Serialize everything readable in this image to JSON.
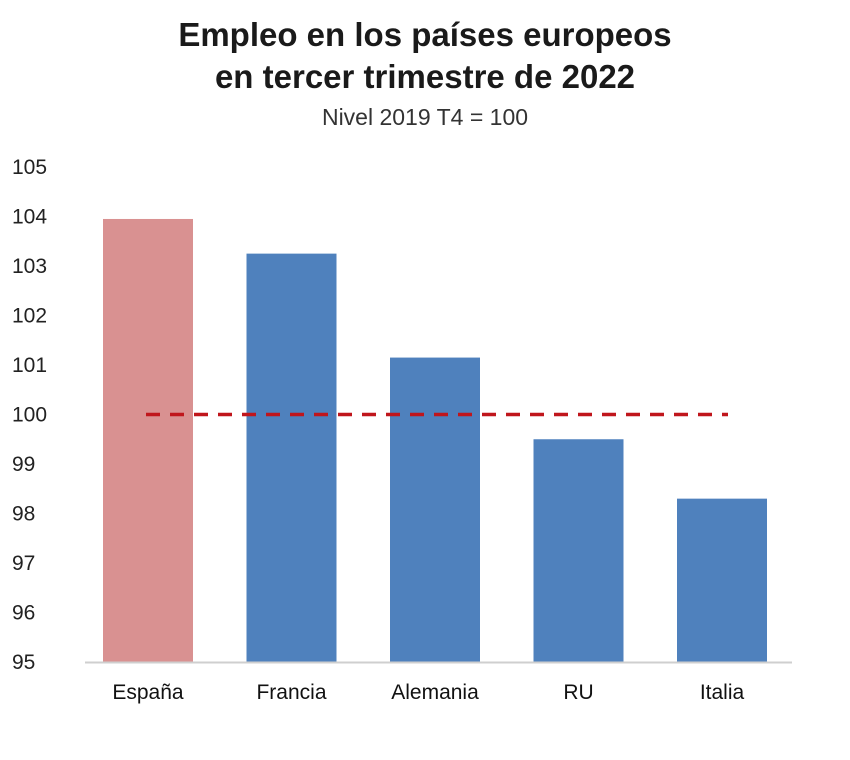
{
  "chart_data": {
    "type": "bar",
    "title_lines": [
      "Empleo en los países europeos",
      "en tercer trimestre de 2022"
    ],
    "subtitle": "Nivel 2019 T4 = 100",
    "categories": [
      "España",
      "Francia",
      "Alemania",
      "RU",
      "Italia"
    ],
    "values": [
      103.95,
      103.25,
      101.15,
      99.5,
      98.3
    ],
    "bar_colors": [
      "#d99191",
      "#4f81bd",
      "#4f81bd",
      "#4f81bd",
      "#4f81bd"
    ],
    "reference_line": {
      "value": 100,
      "color": "#c0161c",
      "style": "dashed"
    },
    "ylim": [
      95,
      105
    ],
    "yticks": [
      95,
      96,
      97,
      98,
      99,
      100,
      101,
      102,
      103,
      104,
      105
    ],
    "xlabel": "",
    "ylabel": "",
    "grid": false,
    "legend": "none"
  }
}
